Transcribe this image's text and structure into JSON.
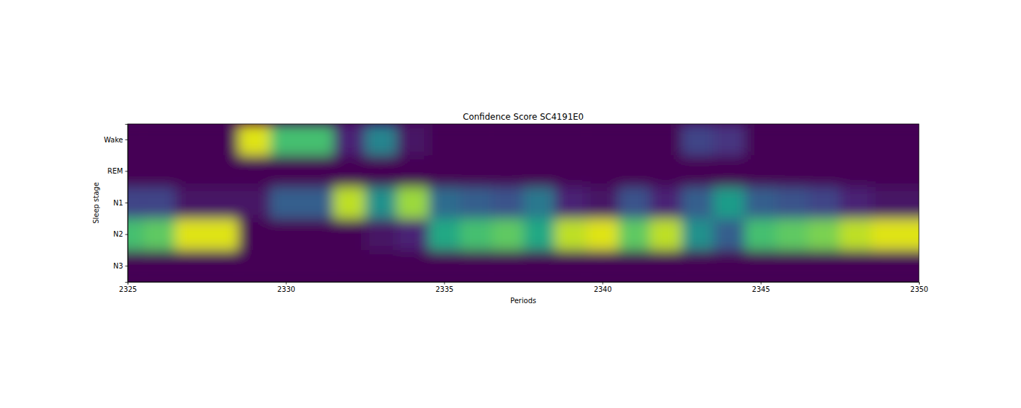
{
  "chart_data": {
    "type": "heatmap",
    "title": "Confidence Score SC4191E0",
    "xlabel": "Periods",
    "ylabel": "Sleep stage",
    "color": "viridis",
    "zlim": [
      0,
      1
    ],
    "x": [
      2325,
      2326,
      2327,
      2328,
      2329,
      2330,
      2331,
      2332,
      2333,
      2334,
      2335,
      2336,
      2337,
      2338,
      2339,
      2340,
      2341,
      2342,
      2343,
      2344,
      2345,
      2346,
      2347,
      2348,
      2349,
      2350
    ],
    "xlim": [
      2325,
      2350
    ],
    "xticks": [
      2325,
      2330,
      2335,
      2340,
      2345,
      2350
    ],
    "categories": [
      "Wake",
      "REM",
      "N1",
      "N2",
      "N3"
    ],
    "cells": [
      [
        0,
        0,
        0,
        0,
        0.95,
        0.7,
        0.7,
        0.1,
        0.45,
        0.05,
        0,
        0,
        0,
        0,
        0,
        0,
        0,
        0,
        0.2,
        0.15,
        0,
        0,
        0,
        0,
        0,
        0
      ],
      [
        0,
        0,
        0,
        0,
        0,
        0,
        0,
        0,
        0,
        0,
        0,
        0,
        0,
        0,
        0,
        0,
        0,
        0,
        0,
        0,
        0,
        0,
        0,
        0,
        0,
        0
      ],
      [
        0.2,
        0.2,
        0.05,
        0.05,
        0.05,
        0.3,
        0.3,
        0.9,
        0.5,
        0.85,
        0.35,
        0.3,
        0.25,
        0.4,
        0.1,
        0.05,
        0.25,
        0.1,
        0.3,
        0.55,
        0.3,
        0.25,
        0.2,
        0.1,
        0.05,
        0.05
      ],
      [
        0.7,
        0.75,
        0.95,
        0.95,
        0,
        0,
        0,
        0,
        0.05,
        0.1,
        0.6,
        0.7,
        0.75,
        0.6,
        0.9,
        0.95,
        0.75,
        0.9,
        0.5,
        0.3,
        0.7,
        0.75,
        0.8,
        0.9,
        0.95,
        0.95
      ],
      [
        0,
        0,
        0,
        0,
        0,
        0,
        0,
        0,
        0,
        0,
        0,
        0,
        0,
        0,
        0,
        0,
        0,
        0,
        0,
        0,
        0,
        0,
        0,
        0,
        0,
        0
      ]
    ]
  }
}
